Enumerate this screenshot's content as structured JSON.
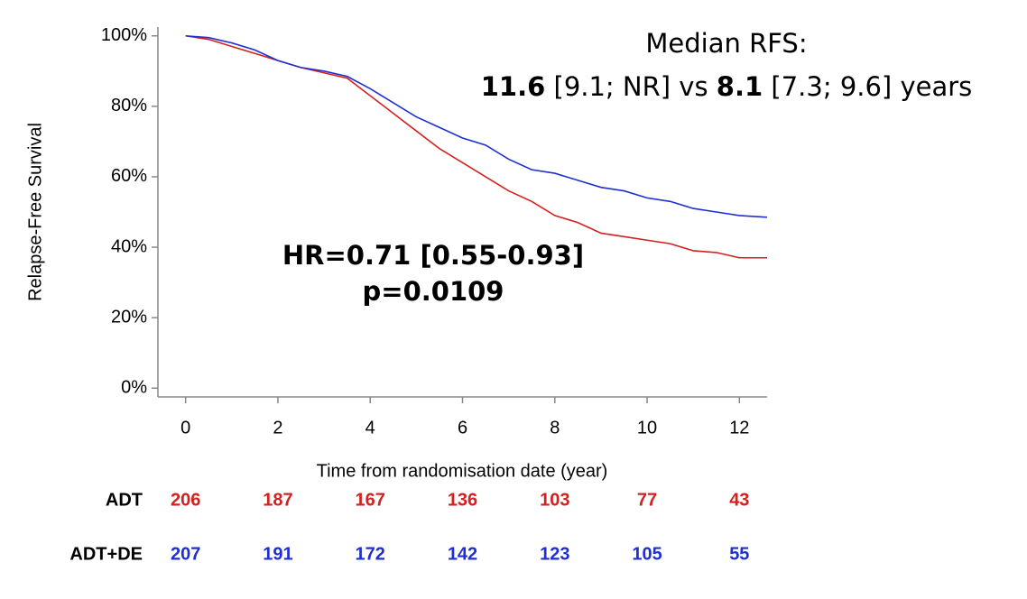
{
  "chart_data": {
    "type": "line",
    "ylabel": "Relapse-Free Survival",
    "xlabel": "Time from randomisation date (year)",
    "xlim": [
      -0.6,
      12.6
    ],
    "xticks": [
      0,
      2,
      4,
      6,
      8,
      10,
      12
    ],
    "ylim": [
      -2.5,
      102.5
    ],
    "yticks": [
      {
        "value": 0,
        "label": "0%"
      },
      {
        "value": 20,
        "label": "20%"
      },
      {
        "value": 40,
        "label": "40%"
      },
      {
        "value": 60,
        "label": "60%"
      },
      {
        "value": 80,
        "label": "80%"
      },
      {
        "value": 100,
        "label": "100%"
      }
    ],
    "x": [
      0,
      0.5,
      1,
      1.5,
      2,
      2.5,
      3,
      3.5,
      4,
      4.5,
      5,
      5.5,
      6,
      6.5,
      7,
      7.5,
      8,
      8.5,
      9,
      9.5,
      10,
      10.5,
      11,
      11.5,
      12,
      12.6
    ],
    "series": [
      {
        "name": "ADT",
        "color": "#d42020",
        "values": [
          100,
          99,
          97,
          95,
          93,
          91,
          89.5,
          88,
          83,
          78,
          73,
          68,
          64,
          60,
          56,
          53,
          49,
          47,
          44,
          43,
          42,
          41,
          39,
          38.5,
          37,
          37
        ]
      },
      {
        "name": "ADT+DE",
        "color": "#1f2fd0",
        "values": [
          100,
          99.5,
          98,
          96,
          93,
          91,
          90,
          88.5,
          85,
          81,
          77,
          74,
          71,
          69,
          65,
          62,
          61,
          59,
          57,
          56,
          54,
          53,
          51,
          50,
          49,
          48.5
        ]
      }
    ],
    "risk_table": {
      "times": [
        0,
        2,
        4,
        6,
        8,
        10,
        12
      ],
      "rows": [
        {
          "name": "ADT",
          "color": "#d42020",
          "values": [
            206,
            187,
            167,
            136,
            103,
            77,
            43
          ]
        },
        {
          "name": "ADT+DE",
          "color": "#1f2fd0",
          "values": [
            207,
            191,
            172,
            142,
            123,
            105,
            55
          ]
        }
      ]
    },
    "annotations": {
      "median_title": "Median RFS:",
      "median_line": [
        "11.6",
        "[9.1; NR] vs",
        "8.1",
        "[7.3; 9.6] years"
      ],
      "hr": "HR=0.71 [0.55-0.93]",
      "p": "p=0.0109"
    }
  }
}
